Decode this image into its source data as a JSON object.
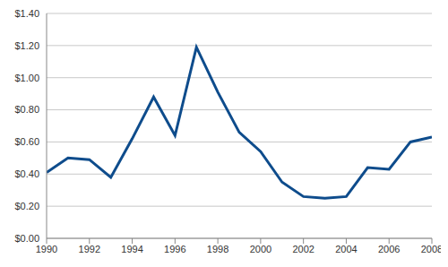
{
  "chart_data": {
    "type": "line",
    "x": [
      1990,
      1991,
      1992,
      1993,
      1994,
      1995,
      1996,
      1997,
      1998,
      1999,
      2000,
      2001,
      2002,
      2003,
      2004,
      2005,
      2006,
      2007,
      2008
    ],
    "values": [
      0.41,
      0.5,
      0.49,
      0.38,
      0.62,
      0.88,
      0.64,
      1.19,
      0.91,
      0.66,
      0.54,
      0.35,
      0.26,
      0.25,
      0.26,
      0.44,
      0.43,
      0.6,
      0.63
    ],
    "color": "#0e4c8c",
    "xlim": [
      1990,
      2008
    ],
    "xticks": [
      1990,
      1992,
      1994,
      1996,
      1998,
      2000,
      2002,
      2004,
      2006,
      2008
    ],
    "ylim": [
      0,
      1.4
    ],
    "yticks": [
      {
        "value": 0,
        "label": "$0.00"
      },
      {
        "value": 0.2,
        "label": "$0.20"
      },
      {
        "value": 0.4,
        "label": "$0.40"
      },
      {
        "value": 0.6,
        "label": "$0.60"
      },
      {
        "value": 0.8,
        "label": "$0.80"
      },
      {
        "value": 1.0,
        "label": "$1.00"
      },
      {
        "value": 1.2,
        "label": "$1.20"
      },
      {
        "value": 1.4,
        "label": "$1.40"
      }
    ],
    "grid": true
  }
}
